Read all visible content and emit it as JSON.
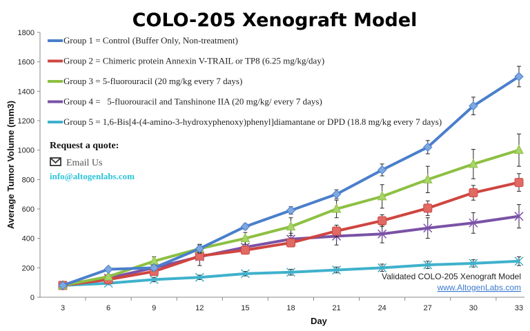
{
  "chart_data": {
    "type": "line",
    "title": "COLO-205 Xenograft Model",
    "xlabel": "Day",
    "ylabel": "Average Tumor Volume (mm3)",
    "x": [
      3,
      6,
      9,
      12,
      15,
      18,
      21,
      24,
      27,
      30,
      33
    ],
    "xlim": [
      3,
      33
    ],
    "ylim": [
      0,
      1800
    ],
    "yticks": [
      0,
      200,
      400,
      600,
      800,
      1000,
      1200,
      1400,
      1600,
      1800
    ],
    "grid": false,
    "legend_position": "top-left",
    "series": [
      {
        "name": "Group 1 = Control (Buffer Only, Non-treatment)",
        "color": "#4a7fcb",
        "marker": "diamond",
        "values": [
          80,
          190,
          200,
          330,
          480,
          590,
          700,
          865,
          1020,
          1300,
          1500
        ],
        "errors": [
          10,
          15,
          20,
          25,
          20,
          25,
          30,
          40,
          45,
          60,
          70
        ]
      },
      {
        "name": "Group 2 = Chimeric protein Annexin V-TRAIL or TP8 (6.25 mg/kg/day)",
        "color": "#cf4540",
        "marker": "square",
        "values": [
          80,
          120,
          175,
          280,
          320,
          370,
          450,
          520,
          605,
          710,
          780
        ],
        "errors": [
          10,
          15,
          20,
          20,
          20,
          25,
          40,
          40,
          50,
          50,
          60
        ]
      },
      {
        "name": "Group 3 = 5-fluorouracil (20 mg/kg every 7 days)",
        "color": "#8dc043",
        "marker": "triangle",
        "values": [
          80,
          140,
          245,
          330,
          400,
          480,
          600,
          685,
          800,
          905,
          1000
        ],
        "errors": [
          10,
          15,
          30,
          30,
          40,
          60,
          60,
          80,
          90,
          100,
          110
        ]
      },
      {
        "name": "Group 4 =   5-fluorouracil and Tanshinone IIA (20 mg/kg/ every 7 days)",
        "color": "#7b52a6",
        "marker": "star",
        "values": [
          80,
          130,
          200,
          275,
          340,
          395,
          415,
          430,
          470,
          505,
          550
        ],
        "errors": [
          10,
          15,
          20,
          60,
          40,
          40,
          60,
          60,
          70,
          70,
          80
        ]
      },
      {
        "name": "Group 5 = 1,6-Bis[4-(4-amino-3-hydroxyphenoxy)phenyl]diamantane or DPD (18.8 mg/kg every 7 days)",
        "color": "#3fb1cc",
        "marker": "x",
        "values": [
          80,
          95,
          120,
          135,
          160,
          170,
          185,
          200,
          220,
          230,
          245
        ],
        "errors": [
          8,
          10,
          15,
          15,
          15,
          20,
          20,
          25,
          25,
          25,
          30
        ]
      }
    ]
  },
  "contact": {
    "quote_label": "Request a quote:",
    "email_label": "Email Us",
    "email_address": "info@altogenlabs.com"
  },
  "watermark": {
    "text": "Validated COLO-205 Xenograft Model",
    "link": "www.AltogenLabs.com"
  }
}
